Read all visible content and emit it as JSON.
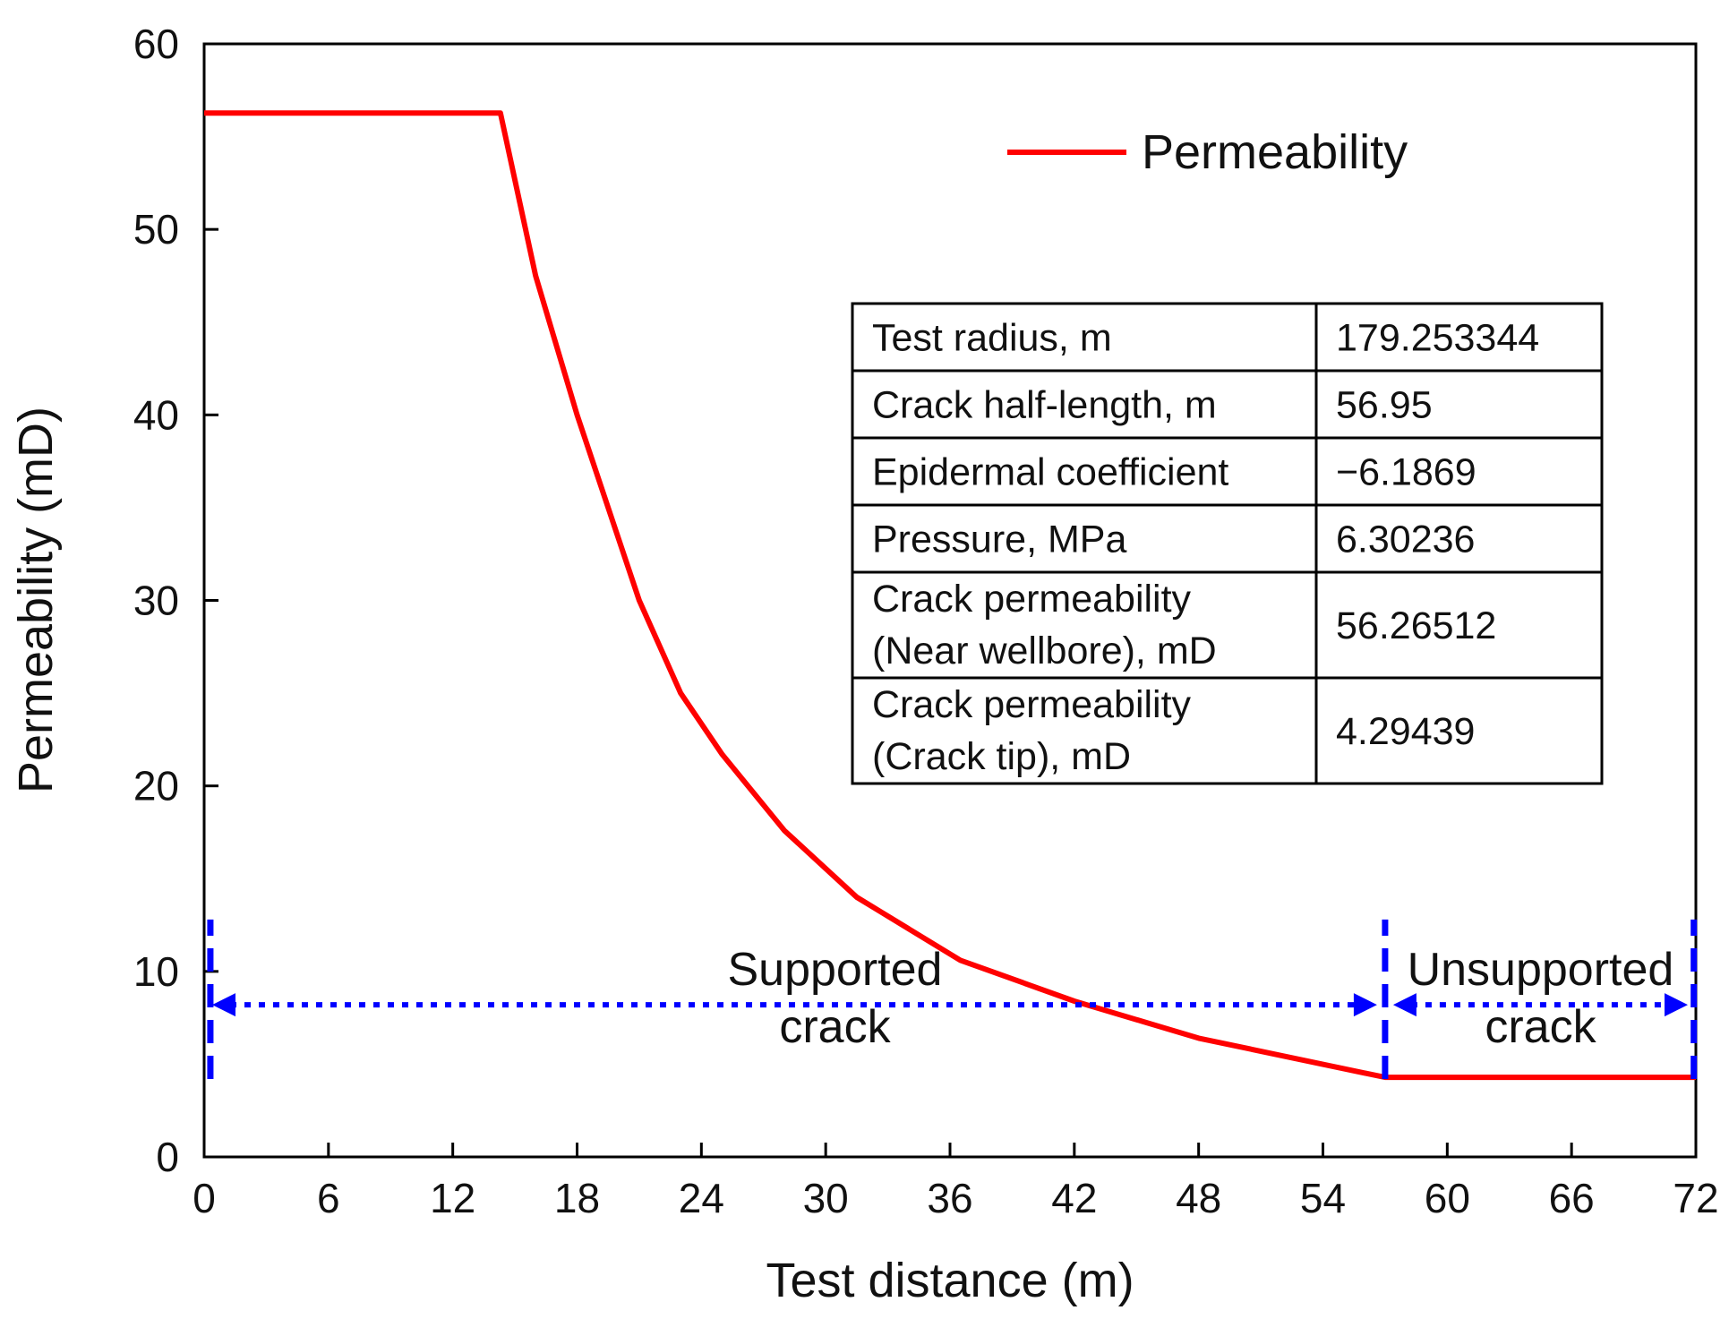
{
  "chart_data": {
    "type": "line",
    "xlabel": "Test distance (m)",
    "ylabel": "Permeability (mD)",
    "xlim": [
      0,
      72
    ],
    "ylim": [
      0,
      60
    ],
    "xticks": [
      0,
      6,
      12,
      18,
      24,
      30,
      36,
      42,
      48,
      54,
      60,
      66,
      72
    ],
    "yticks": [
      0,
      10,
      20,
      30,
      40,
      50,
      60
    ],
    "grid": false,
    "legend": {
      "position": "top-right"
    },
    "series": [
      {
        "name": "Permeability",
        "color": "#ff0000",
        "x": [
          0,
          14.3,
          16,
          18,
          19.5,
          21,
          23,
          25,
          28,
          31.5,
          36.5,
          42,
          48,
          57.0,
          72
        ],
        "y": [
          56.27,
          56.27,
          47.5,
          40.0,
          35.0,
          30.0,
          25.0,
          21.7,
          17.6,
          14.0,
          10.6,
          8.4,
          6.4,
          4.29,
          4.29
        ]
      }
    ],
    "regions": [
      {
        "label_line1": "Supported",
        "label_line2": "crack",
        "x_start": 0,
        "x_end": 57.0,
        "arrow_y": 8.2,
        "color": "#0000ff"
      },
      {
        "label_line1": "Unsupported",
        "label_line2": "crack",
        "x_start": 57.0,
        "x_end": 72,
        "arrow_y": 8.2,
        "color": "#0000ff"
      }
    ],
    "boundaries": [
      {
        "x": 0.3,
        "y_from": 4.2,
        "y_to": 12.8
      },
      {
        "x": 57.0,
        "y_from": 4.2,
        "y_to": 12.8
      },
      {
        "x": 71.9,
        "y_from": 4.2,
        "y_to": 12.8
      }
    ],
    "table": [
      {
        "label": [
          "Test radius, m"
        ],
        "value": "179.253344"
      },
      {
        "label": [
          "Crack half-length, m"
        ],
        "value": "56.95"
      },
      {
        "label": [
          "Epidermal coefficient"
        ],
        "value": "−6.1869"
      },
      {
        "label": [
          "Pressure, MPa"
        ],
        "value": "6.30236"
      },
      {
        "label": [
          "Crack permeability",
          "(Near wellbore), mD"
        ],
        "value": "56.26512"
      },
      {
        "label": [
          "Crack permeability",
          "(Crack tip), mD"
        ],
        "value": "4.29439"
      }
    ]
  }
}
